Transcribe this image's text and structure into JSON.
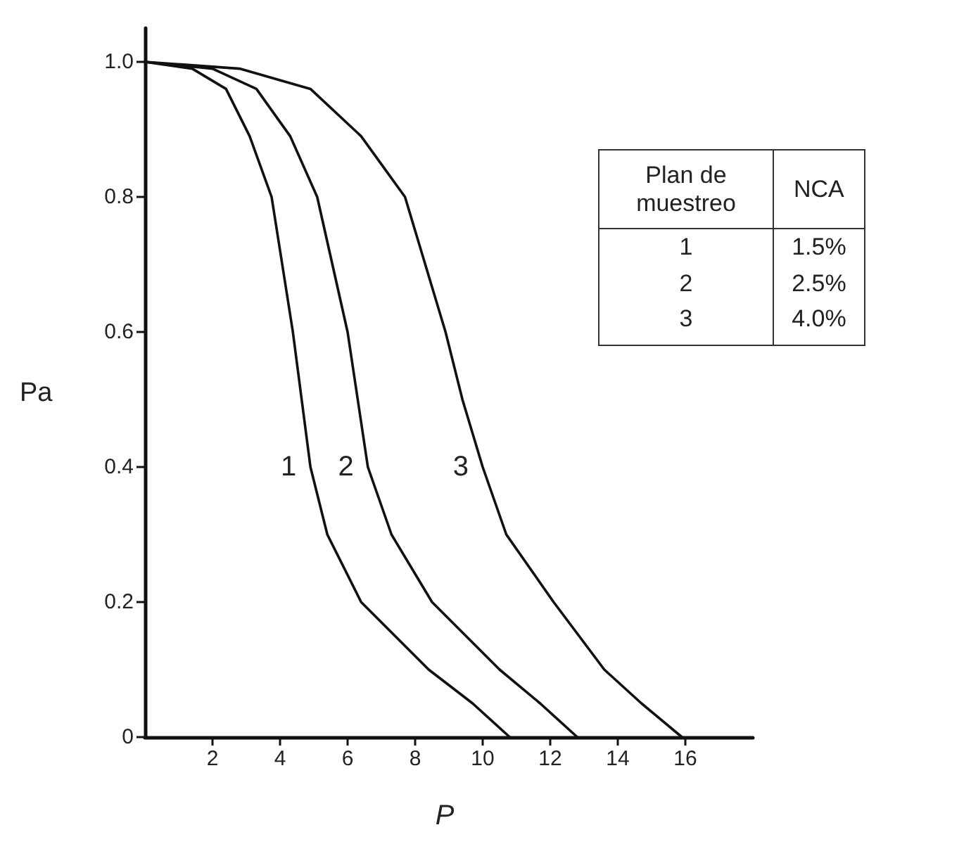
{
  "chart_data": {
    "type": "line",
    "xlabel": "P",
    "ylabel": "Pa",
    "xlim": [
      0,
      18
    ],
    "xticks": [
      2,
      4,
      6,
      8,
      10,
      12,
      14,
      16
    ],
    "ylim": [
      0,
      1.05
    ],
    "yticks": [
      {
        "value": 0,
        "label": "0"
      },
      {
        "value": 0.2,
        "label": "0.2"
      },
      {
        "value": 0.4,
        "label": "0.4"
      },
      {
        "value": 0.6,
        "label": "0.6"
      },
      {
        "value": 0.8,
        "label": "0.8"
      },
      {
        "value": 1,
        "label": "1.0"
      }
    ],
    "grid": false,
    "legend": false,
    "marker": "none",
    "line_style": "solid",
    "series": [
      {
        "name": "1",
        "color": "#111111",
        "x": [
          0,
          1.4,
          2.4,
          3.1,
          3.75,
          4.38,
          4.9,
          5.4,
          6.4,
          8.4,
          9.7,
          10.8
        ],
        "values": [
          1,
          0.99,
          0.96,
          0.89,
          0.8,
          0.6,
          0.4,
          0.3,
          0.2,
          0.1,
          0.05,
          0
        ]
      },
      {
        "name": "2",
        "color": "#111111",
        "x": [
          0,
          2.0,
          3.3,
          4.3,
          5.1,
          6.0,
          6.6,
          7.3,
          8.5,
          10.5,
          11.7,
          12.8
        ],
        "values": [
          1,
          0.99,
          0.96,
          0.89,
          0.8,
          0.6,
          0.4,
          0.3,
          0.2,
          0.1,
          0.05,
          0
        ]
      },
      {
        "name": "3",
        "color": "#111111",
        "x": [
          0,
          2.8,
          4.9,
          6.4,
          7.7,
          8.9,
          9.4,
          10.0,
          10.7,
          12.1,
          13.6,
          14.7,
          15.9
        ],
        "values": [
          1,
          0.99,
          0.96,
          0.89,
          0.8,
          0.6,
          0.5,
          0.4,
          0.3,
          0.2,
          0.1,
          0.05,
          0
        ]
      }
    ],
    "annotations": [
      "Plan de muestreo",
      "NCA",
      "1",
      "1.5%",
      "2",
      "2.5%",
      "3",
      "4.0%"
    ]
  }
}
